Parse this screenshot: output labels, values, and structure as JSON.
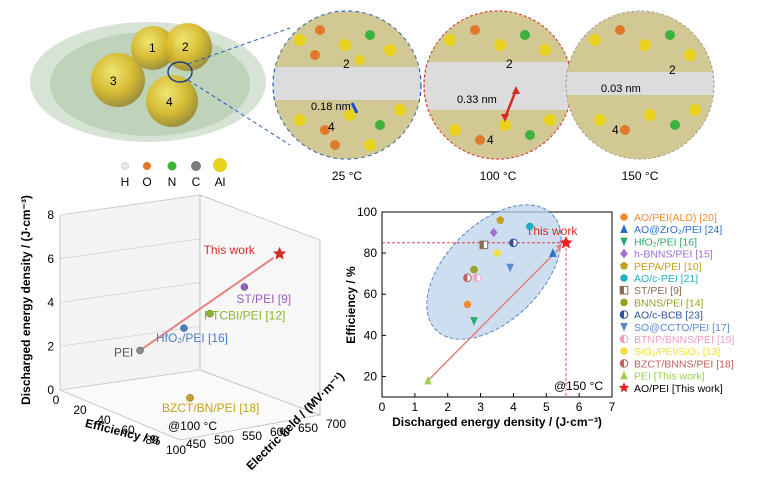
{
  "figure": {
    "cluster_labels": [
      "1",
      "2",
      "3",
      "4"
    ],
    "zoom_panels": [
      {
        "temperature": "25 °C",
        "gap": "0.18 nm",
        "top_label": "2",
        "bottom_label": "4"
      },
      {
        "temperature": "100 °C",
        "gap": "0.33 nm",
        "top_label": "2",
        "bottom_label": "4"
      },
      {
        "temperature": "150 °C",
        "gap": "0.03 nm",
        "top_label": "2",
        "bottom_label": "4"
      }
    ],
    "atom_legend": [
      {
        "symbol": "H",
        "color": "#e8e8e8"
      },
      {
        "symbol": "O",
        "color": "#e07a2a"
      },
      {
        "symbol": "N",
        "color": "#3cb33c"
      },
      {
        "symbol": "C",
        "color": "#7a7a7a"
      },
      {
        "symbol": "Al",
        "color": "#e8d21e"
      }
    ]
  },
  "chart_data": [
    {
      "type": "scatter",
      "projection": "3d",
      "xlabel": "Efficiency / %",
      "ylabel": "Electric field / (MV·m⁻¹)",
      "zlabel": "Discharged energy density / (J·cm⁻³)",
      "annotation": "@100 °C",
      "x_ticks": [
        "0",
        "20",
        "40",
        "60",
        "80",
        "100"
      ],
      "y_ticks": [
        "450",
        "500",
        "550",
        "600",
        "650",
        "700"
      ],
      "z_ticks": [
        "0",
        "2",
        "4",
        "6",
        "8"
      ],
      "xlim": [
        0,
        100
      ],
      "ylim": [
        450,
        700
      ],
      "zlim": [
        0,
        8
      ],
      "points": [
        {
          "label": "PEI",
          "x": 20,
          "y": 550,
          "z": 1.9,
          "color": "#8a8a8a"
        },
        {
          "label": "HfO₂/PEI [16]",
          "x": 45,
          "y": 575,
          "z": 3.4,
          "color": "#4a7cc7"
        },
        {
          "label": "PTCBI/PEI [12]",
          "x": 55,
          "y": 600,
          "z": 4.2,
          "color": "#8ab82d"
        },
        {
          "label": "ST/PEI [9]",
          "x": 65,
          "y": 640,
          "z": 5.5,
          "color": "#9b5fc0"
        },
        {
          "label": "BZCT/BN/PEI [18]",
          "x": 85,
          "y": 500,
          "z": 1.4,
          "color": "#c9a020"
        },
        {
          "label": "This work",
          "x": 85,
          "y": 660,
          "z": 7.4,
          "color": "#d42b2b"
        }
      ]
    },
    {
      "type": "scatter",
      "xlabel": "Discharged energy density / (J·cm⁻³)",
      "ylabel": "Efficiency / %",
      "annotation": "@150 °C",
      "highlight": "This work",
      "xlim": [
        0,
        7
      ],
      "ylim": [
        10,
        100
      ],
      "x_ticks": [
        "0",
        "1",
        "2",
        "3",
        "4",
        "5",
        "6",
        "7"
      ],
      "y_ticks": [
        "20",
        "40",
        "60",
        "80",
        "100"
      ],
      "legend_position": "right",
      "series": [
        {
          "name": "AO/PEI(ALD) [20]",
          "color": "#f08a30",
          "marker": "circle",
          "points": [
            [
              2.6,
              55
            ]
          ]
        },
        {
          "name": "AO@ZrO₂/PEI [24]",
          "color": "#2d6fcc",
          "marker": "triangle-up",
          "points": [
            [
              5.2,
              80
            ]
          ]
        },
        {
          "name": "HfO₂/PEI [16]",
          "color": "#2aaa6a",
          "marker": "triangle-down",
          "points": [
            [
              2.8,
              47
            ]
          ]
        },
        {
          "name": "h-BNNS/PEI [15]",
          "color": "#a070d0",
          "marker": "diamond",
          "points": [
            [
              3.4,
              90
            ]
          ]
        },
        {
          "name": "PEPA/PEI [10]",
          "color": "#c8a020",
          "marker": "pentagon",
          "points": [
            [
              3.6,
              96
            ]
          ]
        },
        {
          "name": "AO/c-PEI [21]",
          "color": "#20b0c0",
          "marker": "circle",
          "points": [
            [
              4.5,
              93
            ]
          ]
        },
        {
          "name": "ST/PEI [9]",
          "color": "#8a6a50",
          "marker": "square-half",
          "points": [
            [
              3.1,
              84
            ]
          ]
        },
        {
          "name": "BNNS/PEI [14]",
          "color": "#9aa020",
          "marker": "circle",
          "points": [
            [
              2.8,
              72
            ]
          ]
        },
        {
          "name": "AO/c-BCB [23]",
          "color": "#3050a0",
          "marker": "circle-half",
          "points": [
            [
              4.0,
              85
            ]
          ]
        },
        {
          "name": "SO@CCTO/PEI [17]",
          "color": "#5a8ad0",
          "marker": "triangle-down",
          "points": [
            [
              3.9,
              73
            ]
          ]
        },
        {
          "name": "BTNP/BNNS/PEI [19]",
          "color": "#f0a0c0",
          "marker": "circle-half",
          "points": [
            [
              2.9,
              68
            ]
          ]
        },
        {
          "name": "SiO₂/PEI/SiO₂ [13]",
          "color": "#f0e040",
          "marker": "circle",
          "points": [
            [
              3.5,
              80
            ]
          ]
        },
        {
          "name": "BZCT/BNNS/PEI [18]",
          "color": "#c06060",
          "marker": "circle-half",
          "points": [
            [
              2.6,
              68
            ]
          ]
        },
        {
          "name": "PEI [This work]",
          "color": "#a0d050",
          "marker": "triangle-up",
          "points": [
            [
              1.4,
              18
            ]
          ]
        },
        {
          "name": "AO/PEI [This work]",
          "color": "#e82020",
          "marker": "star",
          "points": [
            [
              5.6,
              85
            ]
          ]
        }
      ],
      "annotations": [
        {
          "text": "This work",
          "x": 5.6,
          "y": 85
        }
      ]
    }
  ]
}
